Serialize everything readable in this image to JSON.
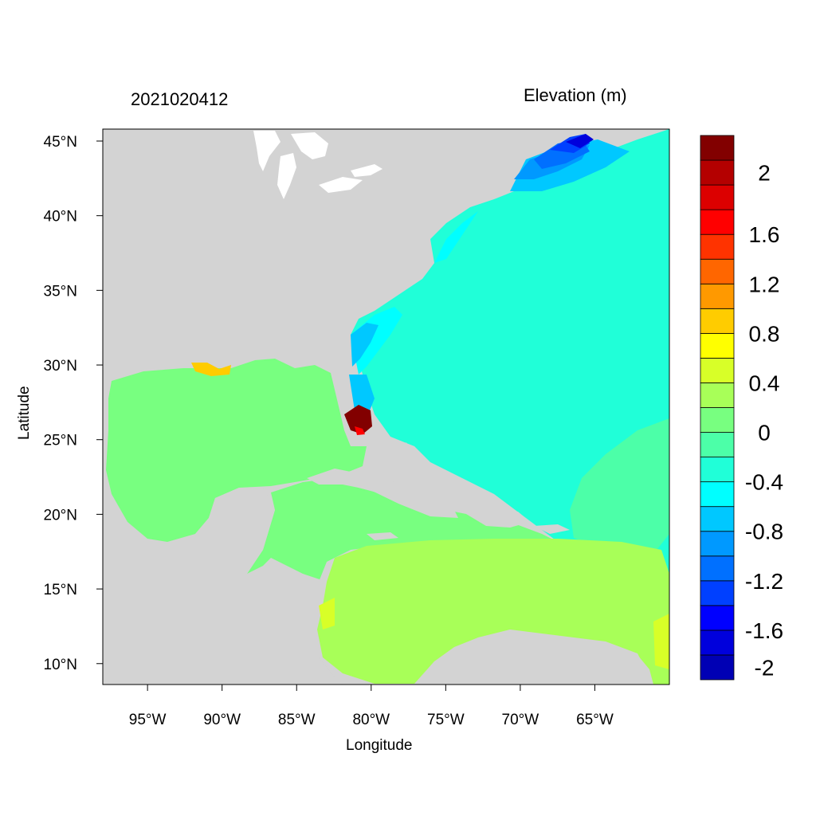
{
  "map": {
    "left_title": "2021020412",
    "right_title": "Elevation (m)",
    "xlabel": "Longitude",
    "ylabel": "Latitude",
    "extent": {
      "lon_min": -98,
      "lon_max": -60,
      "lat_min": 8.6,
      "lat_max": 45.8
    },
    "x_ticks": [
      {
        "value": -95,
        "label": "95°W"
      },
      {
        "value": -90,
        "label": "90°W"
      },
      {
        "value": -85,
        "label": "85°W"
      },
      {
        "value": -80,
        "label": "80°W"
      },
      {
        "value": -75,
        "label": "75°W"
      },
      {
        "value": -70,
        "label": "70°W"
      },
      {
        "value": -65,
        "label": "65°W"
      }
    ],
    "y_ticks": [
      {
        "value": 45,
        "label": "45°N"
      },
      {
        "value": 40,
        "label": "40°N"
      },
      {
        "value": 35,
        "label": "35°N"
      },
      {
        "value": 30,
        "label": "30°N"
      },
      {
        "value": 25,
        "label": "25°N"
      },
      {
        "value": 20,
        "label": "20°N"
      },
      {
        "value": 15,
        "label": "15°N"
      },
      {
        "value": 10,
        "label": "10°N"
      }
    ],
    "land_color": "#d3d3d3"
  },
  "colorbar": {
    "colors": [
      "#0000b4",
      "#0000dc",
      "#0000ff",
      "#0040ff",
      "#0070ff",
      "#0099ff",
      "#00c8ff",
      "#00ffff",
      "#20ffd8",
      "#4cffa8",
      "#78ff80",
      "#a8ff58",
      "#d8ff28",
      "#ffff00",
      "#ffcc00",
      "#ff9900",
      "#ff6600",
      "#ff3300",
      "#ff0000",
      "#dc0000",
      "#b40000",
      "#820000"
    ],
    "labels": [
      {
        "index": 20.5,
        "text": "2"
      },
      {
        "index": 18,
        "text": "1.6"
      },
      {
        "index": 16,
        "text": "1.2"
      },
      {
        "index": 14,
        "text": "0.8"
      },
      {
        "index": 12,
        "text": "0.4"
      },
      {
        "index": 10,
        "text": "0"
      },
      {
        "index": 8,
        "text": "-0.4"
      },
      {
        "index": 6,
        "text": "-0.8"
      },
      {
        "index": 4,
        "text": "-1.2"
      },
      {
        "index": 2,
        "text": "-1.6"
      },
      {
        "index": 0.5,
        "text": "-2"
      }
    ]
  }
}
